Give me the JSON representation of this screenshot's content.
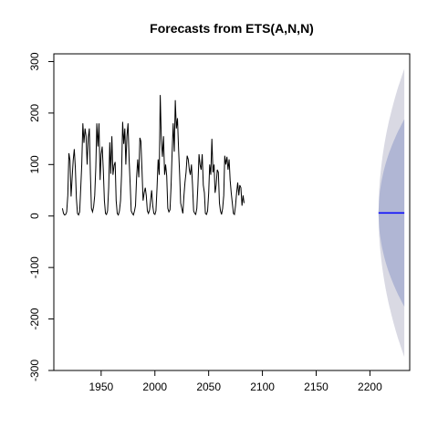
{
  "chart_data": {
    "type": "line",
    "title": "Forecasts from ETS(A,N,N)",
    "xlabel": "",
    "ylabel": "",
    "xlim": [
      1906,
      2237
    ],
    "ylim": [
      -300,
      315
    ],
    "x_ticks": [
      1950,
      2000,
      2050,
      2100,
      2150,
      2200
    ],
    "y_ticks": [
      -300,
      -200,
      -100,
      0,
      100,
      200,
      300
    ],
    "grid": false,
    "legend": "none",
    "series": [
      {
        "role": "observed",
        "color": "#000000",
        "x_start": 1914,
        "x_step": 1,
        "values": [
          15,
          5,
          2,
          3,
          8,
          40,
          122,
          108,
          38,
          72,
          108,
          130,
          93,
          35,
          5,
          2,
          8,
          55,
          100,
          180,
          142,
          170,
          155,
          100,
          152,
          170,
          80,
          15,
          8,
          18,
          40,
          95,
          180,
          135,
          180,
          70,
          120,
          135,
          90,
          30,
          5,
          3,
          10,
          55,
          143,
          82,
          155,
          80,
          98,
          105,
          30,
          5,
          2,
          10,
          30,
          80,
          183,
          140,
          170,
          100,
          155,
          180,
          110,
          60,
          10,
          5,
          2,
          10,
          20,
          75,
          110,
          75,
          152,
          145,
          90,
          30,
          45,
          55,
          40,
          10,
          5,
          12,
          30,
          50,
          20,
          5,
          3,
          10,
          55,
          110,
          80,
          235,
          150,
          115,
          155,
          80,
          100,
          78,
          15,
          8,
          12,
          55,
          122,
          180,
          125,
          225,
          170,
          190,
          130,
          80,
          25,
          15,
          5,
          40,
          65,
          85,
          117,
          110,
          90,
          80,
          100,
          60,
          10,
          5,
          3,
          15,
          60,
          120,
          100,
          90,
          120,
          60,
          45,
          5,
          3,
          10,
          45,
          100,
          80,
          150,
          85,
          100,
          45,
          60,
          90,
          85,
          25,
          10,
          3,
          15,
          40,
          117,
          100,
          115,
          90,
          110,
          70,
          45,
          25,
          5,
          3,
          20,
          45,
          65,
          40,
          60,
          55,
          20,
          40,
          25
        ]
      },
      {
        "role": "point-forecast",
        "color": "#0000ff",
        "x_start": 2208,
        "x_end": 2232,
        "value": 6
      }
    ],
    "intervals": [
      {
        "level": "95",
        "color": "#d9d9e3",
        "x_start": 2208,
        "x_end": 2232,
        "center": 6,
        "half_width_end": 280
      },
      {
        "level": "80",
        "color": "#b0b6d4",
        "x_start": 2208,
        "x_end": 2232,
        "center": 6,
        "half_width_end": 182
      }
    ]
  }
}
